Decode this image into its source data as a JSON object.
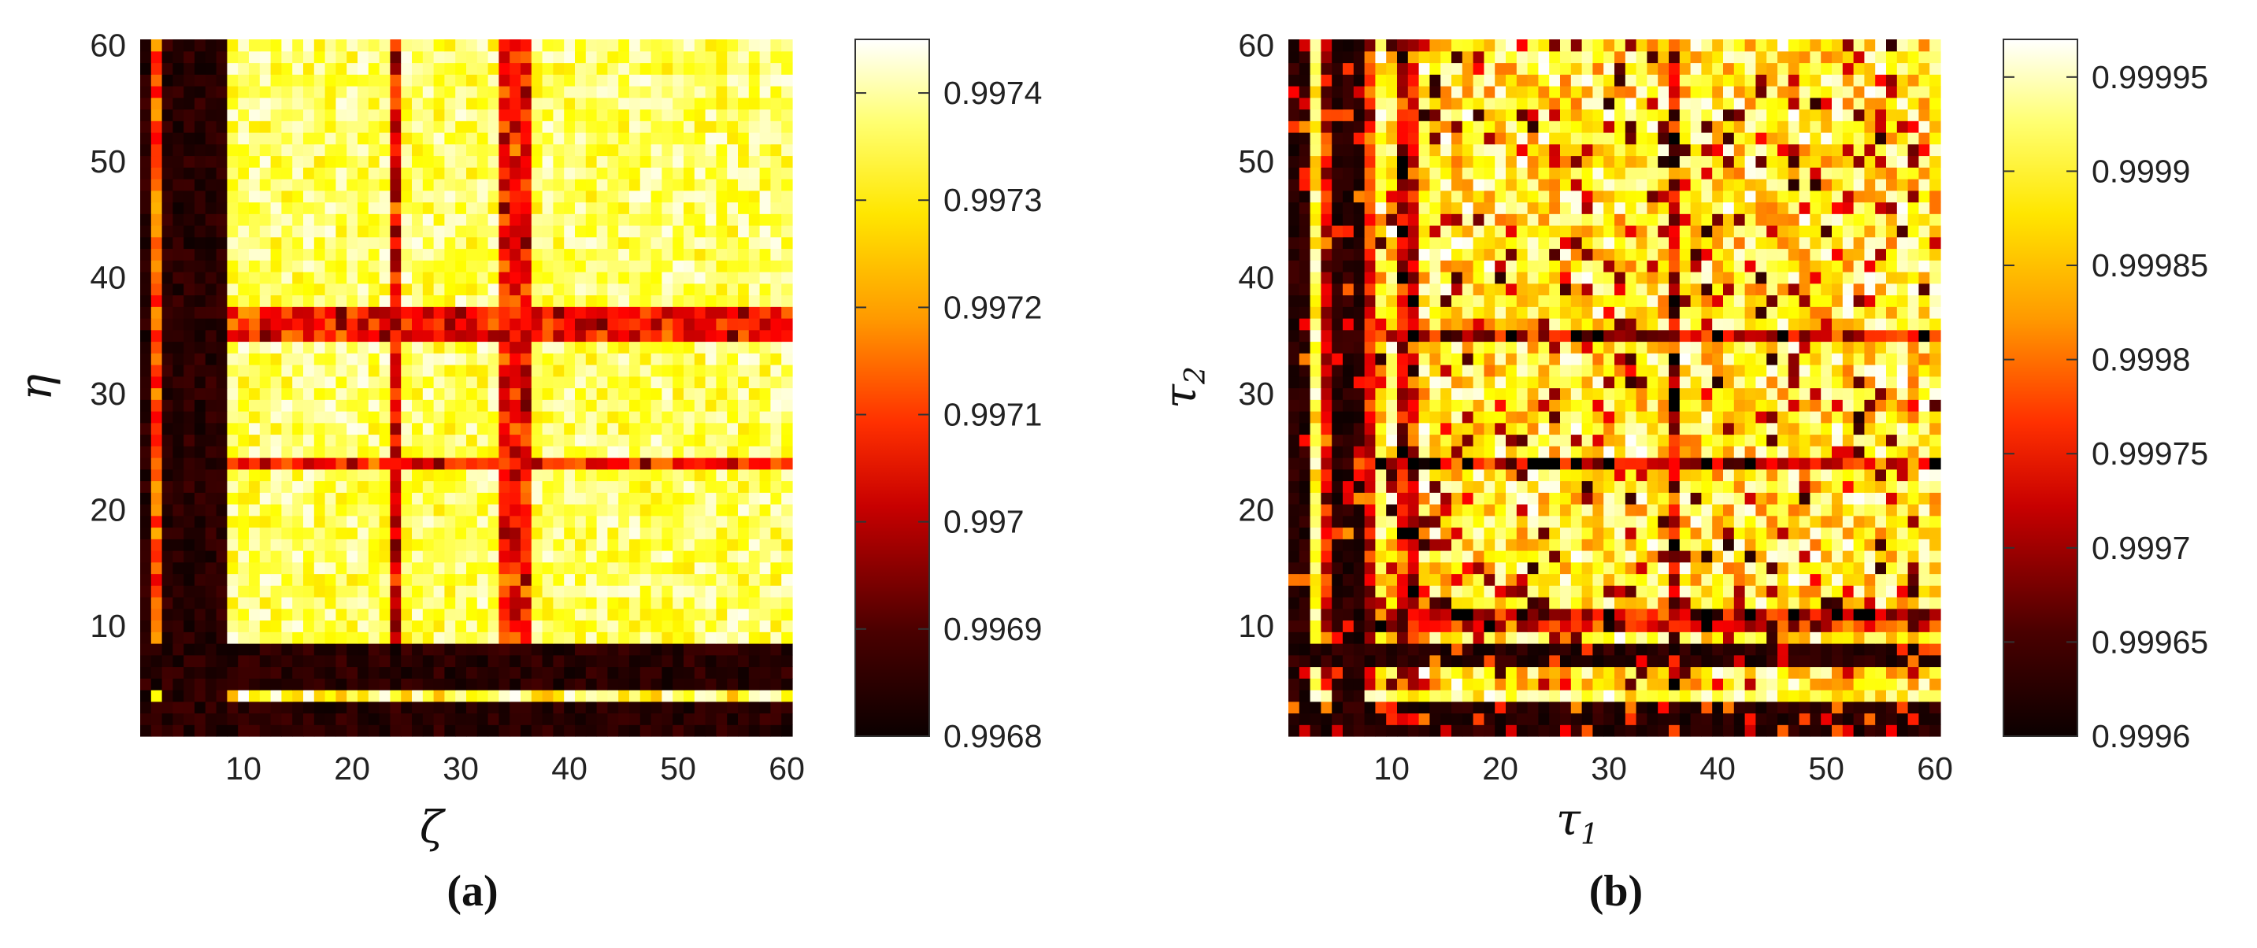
{
  "chart_data": [
    {
      "type": "heatmap",
      "panel_label": "(a)",
      "xlabel": "ζ",
      "xlabel_sub": "",
      "ylabel": "η",
      "ylabel_sub": "",
      "xlim": [
        1,
        60
      ],
      "ylim": [
        1,
        60
      ],
      "xticks": [
        10,
        20,
        30,
        40,
        50,
        60
      ],
      "yticks": [
        10,
        20,
        30,
        40,
        50,
        60
      ],
      "colorbar": {
        "min": 0.9968,
        "max": 0.99745,
        "ticks": [
          0.9968,
          0.9969,
          0.997,
          0.9971,
          0.9972,
          0.9973,
          0.9974
        ],
        "tick_labels": [
          "0.9968",
          "0.9969",
          "0.997",
          "0.9971",
          "0.9972",
          "0.9973",
          "0.9974"
        ]
      },
      "colormap": "hot",
      "grid": "60x60, values approx. between colorbar min and max",
      "features": {
        "dark_columns": [
          1,
          3,
          4,
          5,
          6,
          7,
          8
        ],
        "dark_rows": [
          1,
          2,
          3,
          5,
          6,
          7,
          8
        ],
        "bright_row": 4,
        "dip_columns": [
          24,
          34,
          35,
          36
        ],
        "dip_rows": [
          24,
          35,
          36,
          37
        ]
      }
    },
    {
      "type": "heatmap",
      "panel_label": "(b)",
      "xlabel": "τ",
      "xlabel_sub": "1",
      "ylabel": "τ",
      "ylabel_sub": "2",
      "xlim": [
        1,
        60
      ],
      "ylim": [
        1,
        60
      ],
      "xticks": [
        10,
        20,
        30,
        40,
        50,
        60
      ],
      "yticks": [
        10,
        20,
        30,
        40,
        50,
        60
      ],
      "colorbar": {
        "min": 0.9996,
        "max": 0.99997,
        "ticks": [
          0.9996,
          0.99965,
          0.9997,
          0.99975,
          0.9998,
          0.99985,
          0.9999,
          0.99995
        ],
        "tick_labels": [
          "0.9996",
          "0.99965",
          "0.9997",
          "0.99975",
          "0.9998",
          "0.99985",
          "0.9999",
          "0.99995"
        ]
      },
      "colormap": "hot",
      "grid": "60x60, values approx. between colorbar min and max",
      "features": {
        "dark_columns": [
          1,
          2,
          5,
          6,
          7
        ],
        "dark_rows": [
          1,
          2,
          3,
          7,
          8
        ],
        "bright_row": 4,
        "bright_column": 3,
        "dip_columns": [
          11,
          12,
          36
        ],
        "dip_rows": [
          10,
          11,
          24,
          35
        ]
      }
    }
  ]
}
